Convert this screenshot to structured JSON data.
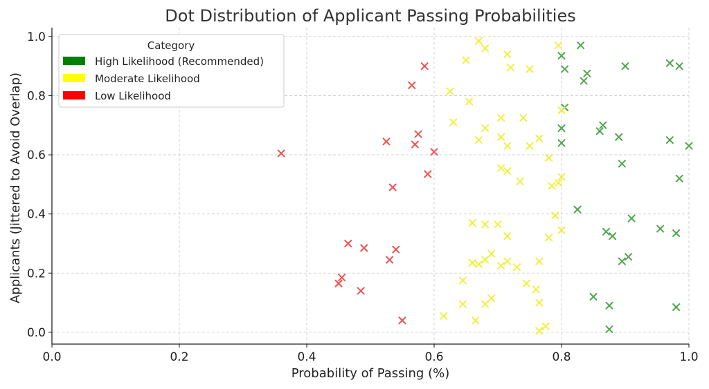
{
  "chart_data": {
    "type": "scatter",
    "title": "Dot Distribution of Applicant Passing Probabilities",
    "xlabel": "Probability of Passing (%)",
    "ylabel": "Applicants (Jittered to Avoid Overlap)",
    "xlim": [
      0.0,
      1.0
    ],
    "ylim": [
      -0.04,
      1.03
    ],
    "xticks": [
      0.0,
      0.2,
      0.4,
      0.6,
      0.8,
      1.0
    ],
    "yticks": [
      0.0,
      0.2,
      0.4,
      0.6,
      0.8,
      1.0
    ],
    "xtick_labels": [
      "0.0",
      "0.2",
      "0.4",
      "0.6",
      "0.8",
      "1.0"
    ],
    "ytick_labels": [
      "0.0",
      "0.2",
      "0.4",
      "0.6",
      "0.8",
      "1.0"
    ],
    "grid": true,
    "marker": "x",
    "legend": {
      "title": "Category",
      "position": "top-left",
      "entries": [
        "High Likelihood (Recommended)",
        "Moderate Likelihood",
        "Low Likelihood"
      ]
    },
    "series": [
      {
        "name": "High Likelihood (Recommended)",
        "color": "#4ea64e",
        "legend_color": "#008000",
        "points": [
          [
            0.8,
            0.935
          ],
          [
            0.83,
            0.97
          ],
          [
            0.805,
            0.89
          ],
          [
            0.84,
            0.875
          ],
          [
            0.835,
            0.85
          ],
          [
            0.9,
            0.9
          ],
          [
            0.97,
            0.91
          ],
          [
            0.985,
            0.9
          ],
          [
            0.805,
            0.76
          ],
          [
            0.865,
            0.7
          ],
          [
            0.86,
            0.68
          ],
          [
            0.8,
            0.69
          ],
          [
            0.89,
            0.66
          ],
          [
            0.97,
            0.65
          ],
          [
            0.8,
            0.64
          ],
          [
            1.0,
            0.63
          ],
          [
            0.895,
            0.57
          ],
          [
            0.985,
            0.52
          ],
          [
            0.825,
            0.415
          ],
          [
            0.91,
            0.385
          ],
          [
            0.955,
            0.35
          ],
          [
            0.87,
            0.34
          ],
          [
            0.88,
            0.325
          ],
          [
            0.98,
            0.335
          ],
          [
            0.905,
            0.255
          ],
          [
            0.895,
            0.24
          ],
          [
            0.85,
            0.12
          ],
          [
            0.875,
            0.09
          ],
          [
            0.98,
            0.085
          ],
          [
            0.875,
            0.01
          ]
        ]
      },
      {
        "name": "Moderate Likelihood",
        "color": "#f0f040",
        "legend_color": "#ffff00",
        "points": [
          [
            0.67,
            0.985
          ],
          [
            0.68,
            0.96
          ],
          [
            0.795,
            0.97
          ],
          [
            0.715,
            0.94
          ],
          [
            0.65,
            0.92
          ],
          [
            0.72,
            0.895
          ],
          [
            0.75,
            0.89
          ],
          [
            0.625,
            0.815
          ],
          [
            0.655,
            0.78
          ],
          [
            0.8,
            0.75
          ],
          [
            0.705,
            0.725
          ],
          [
            0.74,
            0.725
          ],
          [
            0.63,
            0.71
          ],
          [
            0.68,
            0.69
          ],
          [
            0.705,
            0.66
          ],
          [
            0.765,
            0.655
          ],
          [
            0.67,
            0.65
          ],
          [
            0.715,
            0.63
          ],
          [
            0.75,
            0.63
          ],
          [
            0.78,
            0.59
          ],
          [
            0.705,
            0.555
          ],
          [
            0.715,
            0.545
          ],
          [
            0.8,
            0.525
          ],
          [
            0.795,
            0.505
          ],
          [
            0.735,
            0.51
          ],
          [
            0.785,
            0.495
          ],
          [
            0.79,
            0.395
          ],
          [
            0.66,
            0.37
          ],
          [
            0.68,
            0.365
          ],
          [
            0.7,
            0.365
          ],
          [
            0.8,
            0.345
          ],
          [
            0.715,
            0.325
          ],
          [
            0.78,
            0.32
          ],
          [
            0.69,
            0.265
          ],
          [
            0.68,
            0.245
          ],
          [
            0.66,
            0.235
          ],
          [
            0.67,
            0.23
          ],
          [
            0.705,
            0.225
          ],
          [
            0.715,
            0.24
          ],
          [
            0.73,
            0.22
          ],
          [
            0.765,
            0.24
          ],
          [
            0.645,
            0.175
          ],
          [
            0.745,
            0.165
          ],
          [
            0.76,
            0.145
          ],
          [
            0.69,
            0.115
          ],
          [
            0.645,
            0.095
          ],
          [
            0.68,
            0.095
          ],
          [
            0.765,
            0.1
          ],
          [
            0.615,
            0.055
          ],
          [
            0.665,
            0.04
          ],
          [
            0.775,
            0.02
          ],
          [
            0.765,
            0.005
          ]
        ]
      },
      {
        "name": "Low Likelihood",
        "color": "#f05050",
        "legend_color": "#ff0000",
        "points": [
          [
            0.585,
            0.9
          ],
          [
            0.565,
            0.835
          ],
          [
            0.575,
            0.67
          ],
          [
            0.525,
            0.645
          ],
          [
            0.57,
            0.635
          ],
          [
            0.36,
            0.605
          ],
          [
            0.6,
            0.61
          ],
          [
            0.59,
            0.535
          ],
          [
            0.535,
            0.49
          ],
          [
            0.465,
            0.3
          ],
          [
            0.49,
            0.285
          ],
          [
            0.54,
            0.28
          ],
          [
            0.53,
            0.245
          ],
          [
            0.455,
            0.185
          ],
          [
            0.45,
            0.165
          ],
          [
            0.485,
            0.14
          ],
          [
            0.55,
            0.04
          ]
        ]
      }
    ]
  }
}
